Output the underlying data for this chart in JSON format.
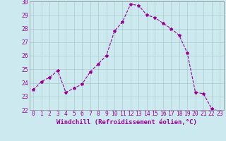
{
  "x": [
    0,
    1,
    2,
    3,
    4,
    5,
    6,
    7,
    8,
    9,
    10,
    11,
    12,
    13,
    14,
    15,
    16,
    17,
    18,
    19,
    20,
    21,
    22,
    23
  ],
  "y": [
    23.5,
    24.1,
    24.4,
    24.9,
    23.3,
    23.6,
    23.9,
    24.8,
    25.4,
    26.0,
    27.8,
    28.5,
    29.8,
    29.7,
    29.0,
    28.8,
    28.4,
    28.0,
    27.5,
    26.2,
    23.3,
    23.2,
    22.1,
    21.9
  ],
  "line_color": "#990099",
  "marker": "*",
  "marker_size": 3,
  "bg_color": "#cce9f0",
  "grid_color": "#aacccc",
  "xlabel": "Windchill (Refroidissement éolien,°C)",
  "xlabel_fontsize": 6.5,
  "tick_fontsize": 5.8,
  "ylim": [
    22,
    30
  ],
  "xlim": [
    -0.5,
    23.5
  ],
  "yticks": [
    22,
    23,
    24,
    25,
    26,
    27,
    28,
    29,
    30
  ],
  "xticks": [
    0,
    1,
    2,
    3,
    4,
    5,
    6,
    7,
    8,
    9,
    10,
    11,
    12,
    13,
    14,
    15,
    16,
    17,
    18,
    19,
    20,
    21,
    22,
    23
  ]
}
